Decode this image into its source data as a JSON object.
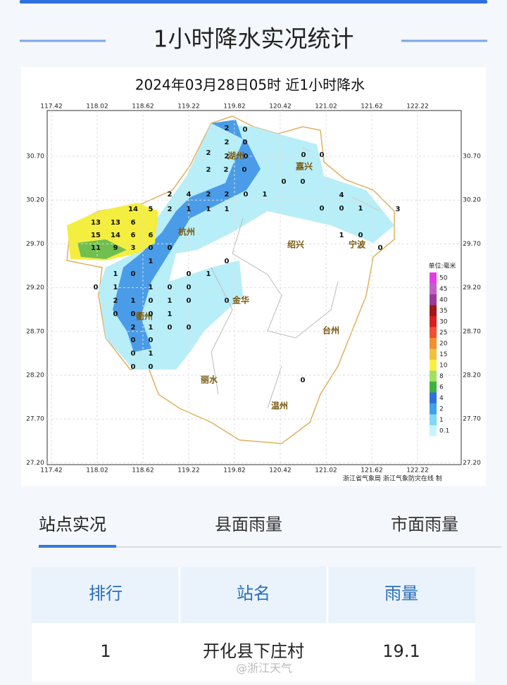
{
  "page": {
    "title": "1小时降水实况统计"
  },
  "map": {
    "title": "2024年03月28日05时  近1小时降水",
    "lon_ticks": [
      117.42,
      118.02,
      118.62,
      119.22,
      119.82,
      120.42,
      121.02,
      121.62,
      122.22
    ],
    "lat_ticks": [
      {
        "value": 30.7,
        "label": "30.70"
      },
      {
        "value": 30.2,
        "label": "30.20"
      },
      {
        "value": 29.7,
        "label": "29.70"
      },
      {
        "value": 29.2,
        "label": "29.20"
      },
      {
        "value": 28.7,
        "label": "28.70"
      },
      {
        "value": 28.2,
        "label": "28.20"
      },
      {
        "value": 27.7,
        "label": "27.70"
      },
      {
        "value": 27.2,
        "label": "27.20"
      }
    ],
    "cities": [
      "湖州",
      "嘉兴",
      "杭州",
      "绍兴",
      "宁波",
      "金华",
      "衢州",
      "台州",
      "丽水",
      "温州"
    ],
    "stations": [
      2,
      0,
      2,
      0,
      2,
      2,
      0,
      2,
      2,
      0,
      0,
      0,
      2,
      4,
      2,
      2,
      0,
      1,
      0,
      0,
      14,
      5,
      2,
      1,
      1,
      1,
      13,
      13,
      6,
      15,
      14,
      6,
      6,
      11,
      9,
      3,
      0,
      0,
      1,
      1,
      0,
      0,
      1,
      0,
      0,
      1,
      1,
      0,
      0,
      2,
      1,
      0,
      0,
      1,
      0,
      0,
      0,
      0,
      1,
      2,
      1,
      0,
      0,
      0,
      0,
      0,
      1,
      0,
      0,
      0,
      4,
      0,
      0,
      1,
      1,
      0,
      3,
      0
    ],
    "legend_title": "单位:毫米",
    "legend": [
      {
        "value": 50,
        "color": "#e040e0"
      },
      {
        "value": 45,
        "color": "#c060c8"
      },
      {
        "value": 40,
        "color": "#9a3c9a"
      },
      {
        "value": 35,
        "color": "#a01818"
      },
      {
        "value": 30,
        "color": "#d82020"
      },
      {
        "value": 25,
        "color": "#f05030"
      },
      {
        "value": 20,
        "color": "#f09030"
      },
      {
        "value": 15,
        "color": "#f0c040"
      },
      {
        "value": 10,
        "color": "#f8f040"
      },
      {
        "value": 8,
        "color": "#a0e060"
      },
      {
        "value": 6,
        "color": "#40b040"
      },
      {
        "value": 4,
        "color": "#3070d8"
      },
      {
        "value": 2,
        "color": "#40a0e8"
      },
      {
        "value": 1,
        "color": "#80d8f8"
      },
      {
        "value": 0.1,
        "color": "#c8f4fc"
      }
    ],
    "credit": "浙江省气象局   浙江气象防灾在线 制"
  },
  "tabs": [
    "站点实况",
    "县面雨量",
    "市面雨量"
  ],
  "table": {
    "header": [
      "排行",
      "站名",
      "雨量"
    ],
    "rows": [
      [
        1,
        "开化县下庄村",
        19.1
      ]
    ]
  },
  "watermark": "@浙江天气"
}
